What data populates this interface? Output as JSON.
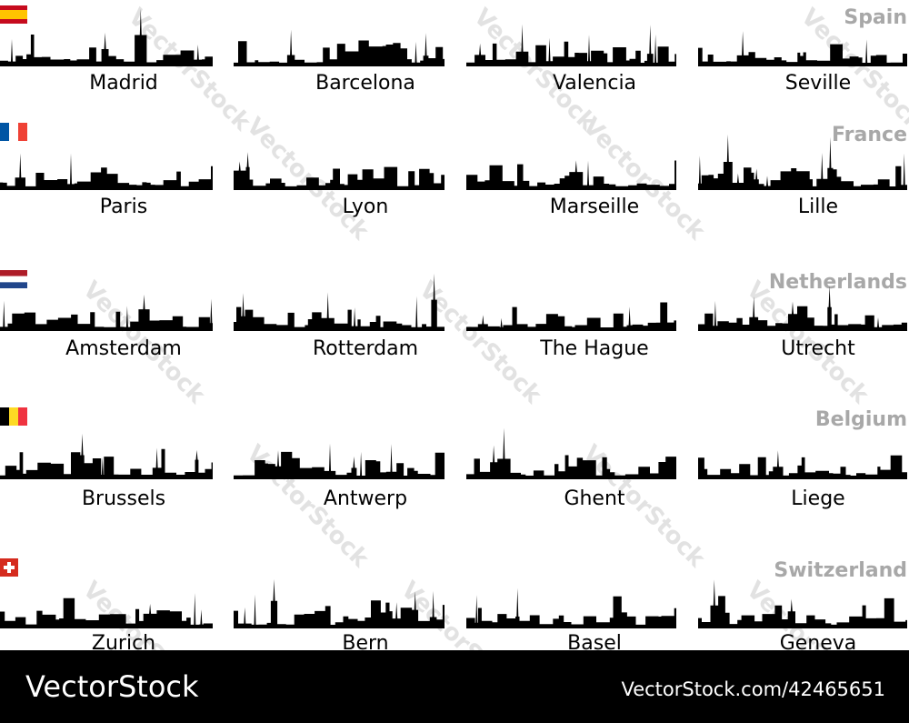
{
  "countries": [
    {
      "name": "Spain",
      "cities": [
        "Madrid",
        "Barcelona",
        "Valencia",
        "Seville"
      ]
    },
    {
      "name": "France",
      "cities": [
        "Paris",
        "Lyon",
        "Marseille",
        "Lille"
      ]
    },
    {
      "name": "Netherlands",
      "cities": [
        "Amsterdam",
        "Rotterdam",
        "The Hague",
        "Utrecht"
      ]
    },
    {
      "name": "Belgium",
      "cities": [
        "Brussels",
        "Antwerp",
        "Ghent",
        "Liege"
      ]
    },
    {
      "name": "Switzerland",
      "cities": [
        "Zurich",
        "Bern",
        "Basel",
        "Geneva"
      ]
    }
  ],
  "watermark": "VectorStock",
  "footer": {
    "brand": "VectorStock",
    "url": "VectorStock.com/42465651"
  }
}
